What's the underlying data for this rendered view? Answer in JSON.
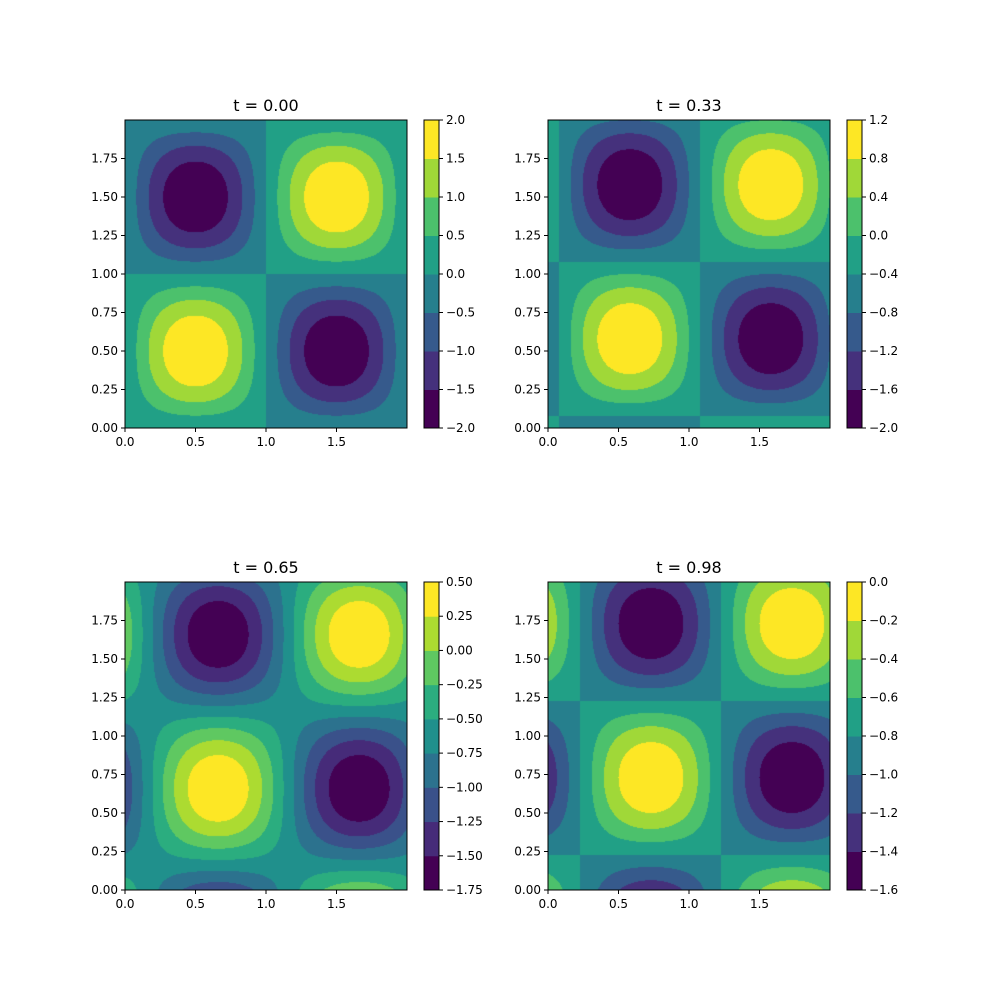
{
  "chart_data": [
    {
      "type": "contour",
      "title": "t = 0.00",
      "xlim": [
        0,
        2
      ],
      "ylim": [
        0,
        2
      ],
      "x_ticks": [
        "0.0",
        "0.5",
        "1.0",
        "1.5"
      ],
      "y_ticks": [
        "0.00",
        "0.25",
        "0.50",
        "0.75",
        "1.00",
        "1.25",
        "1.50",
        "1.75"
      ],
      "colorbar": {
        "range": [
          -2.0,
          2.0
        ],
        "levels": [
          -2.0,
          -1.5,
          -1.0,
          -0.5,
          0.0,
          0.5,
          1.0,
          1.5,
          2.0
        ],
        "ticks": [
          "−2.0",
          "−1.5",
          "−1.0",
          "−0.5",
          "0.0",
          "0.5",
          "1.0",
          "1.5",
          "2.0"
        ]
      },
      "features": [
        {
          "kind": "maximum",
          "x": 0.5,
          "y": 0.5,
          "value": 2.0
        },
        {
          "kind": "minimum",
          "x": 1.5,
          "y": 1.5,
          "value": -2.0
        }
      ],
      "shift": 0.0
    },
    {
      "type": "contour",
      "title": "t = 0.33",
      "xlim": [
        0,
        2
      ],
      "ylim": [
        0,
        2
      ],
      "x_ticks": [
        "0.0",
        "0.5",
        "1.0",
        "1.5"
      ],
      "y_ticks": [
        "0.00",
        "0.25",
        "0.50",
        "0.75",
        "1.00",
        "1.25",
        "1.50",
        "1.75"
      ],
      "colorbar": {
        "range": [
          -2.0,
          1.2
        ],
        "levels": [
          -2.0,
          -1.6,
          -1.2,
          -0.8,
          -0.4,
          0.0,
          0.4,
          0.8,
          1.2
        ],
        "ticks": [
          "−2.0",
          "−1.6",
          "−1.2",
          "−0.8",
          "−0.4",
          "0.0",
          "0.4",
          "0.8",
          "1.2"
        ]
      },
      "features": [
        {
          "kind": "maximum",
          "x": 0.58,
          "y": 0.58
        },
        {
          "kind": "minimum",
          "x": 1.58,
          "y": 1.58
        }
      ],
      "shift": 0.08
    },
    {
      "type": "contour",
      "title": "t = 0.65",
      "xlim": [
        0,
        2
      ],
      "ylim": [
        0,
        2
      ],
      "x_ticks": [
        "0.0",
        "0.5",
        "1.0",
        "1.5"
      ],
      "y_ticks": [
        "0.00",
        "0.25",
        "0.50",
        "0.75",
        "1.00",
        "1.25",
        "1.50",
        "1.75"
      ],
      "colorbar": {
        "range": [
          -1.75,
          0.5
        ],
        "levels": [
          -1.75,
          -1.5,
          -1.25,
          -1.0,
          -0.75,
          -0.5,
          -0.25,
          0.0,
          0.25,
          0.5
        ],
        "ticks": [
          "−1.75",
          "−1.50",
          "−1.25",
          "−1.00",
          "−0.75",
          "−0.50",
          "−0.25",
          "0.00",
          "0.25",
          "0.50"
        ]
      },
      "features": [
        {
          "kind": "maximum",
          "x": 0.66,
          "y": 0.66
        },
        {
          "kind": "minimum",
          "x": 1.66,
          "y": 1.66
        }
      ],
      "shift": 0.16
    },
    {
      "type": "contour",
      "title": "t = 0.98",
      "xlim": [
        0,
        2
      ],
      "ylim": [
        0,
        2
      ],
      "x_ticks": [
        "0.0",
        "0.5",
        "1.0",
        "1.5"
      ],
      "y_ticks": [
        "0.00",
        "0.25",
        "0.50",
        "0.75",
        "1.00",
        "1.25",
        "1.50",
        "1.75"
      ],
      "colorbar": {
        "range": [
          -1.6,
          0.0
        ],
        "levels": [
          -1.6,
          -1.4,
          -1.2,
          -1.0,
          -0.8,
          -0.6,
          -0.4,
          -0.2,
          0.0
        ],
        "ticks": [
          "−1.6",
          "−1.4",
          "−1.2",
          "−1.0",
          "−0.8",
          "−0.6",
          "−0.4",
          "−0.2",
          "0.0"
        ]
      },
      "features": [
        {
          "kind": "maximum",
          "x": 0.73,
          "y": 0.73
        },
        {
          "kind": "minimum",
          "x": 1.73,
          "y": 1.73
        }
      ],
      "shift": 0.23
    }
  ],
  "colormap": "viridis",
  "colors": {
    "axis": "#000000",
    "background": "#ffffff"
  }
}
